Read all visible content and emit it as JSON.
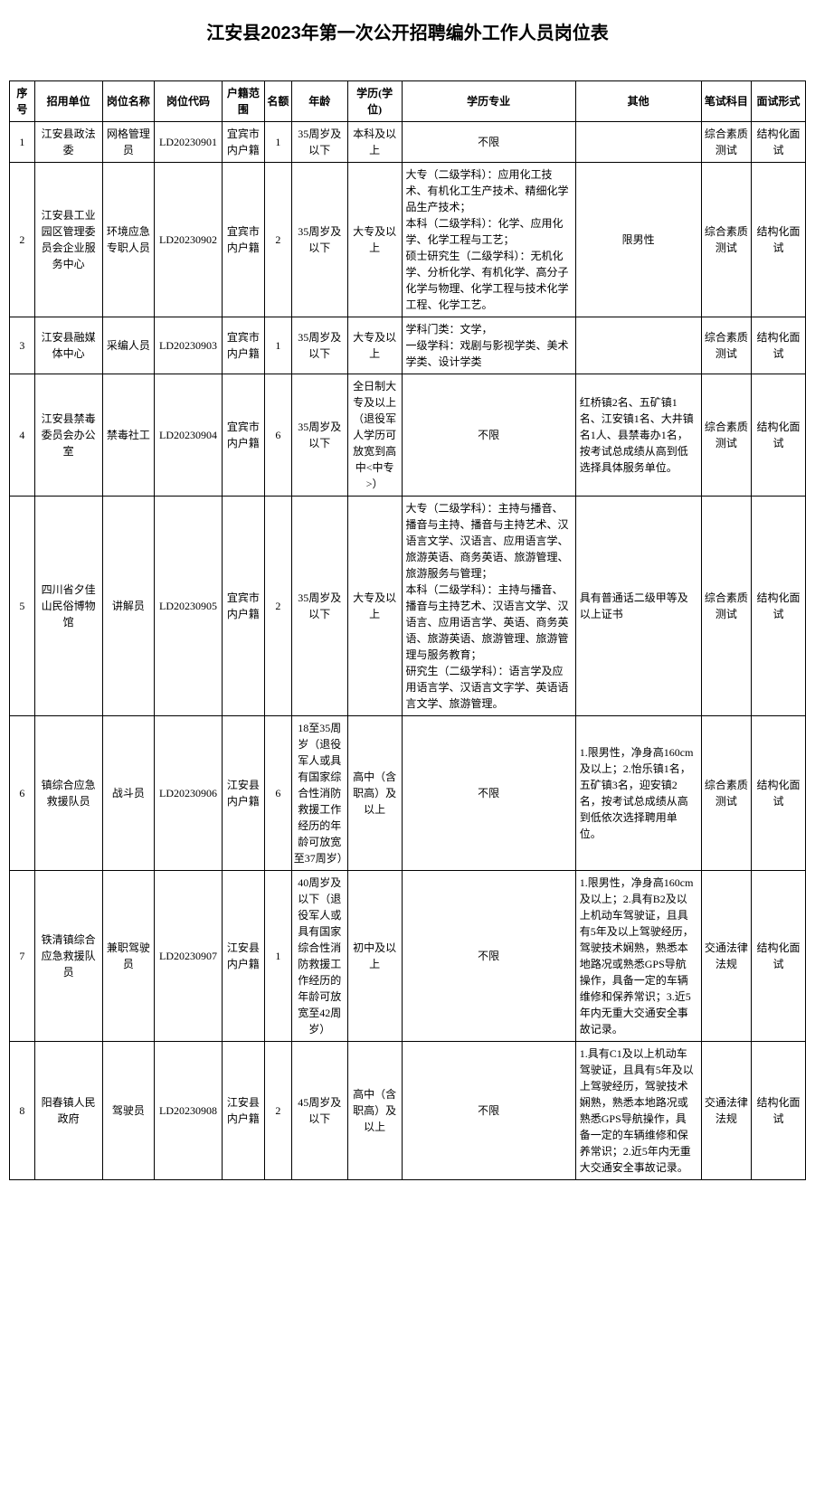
{
  "title": "江安县2023年第一次公开招聘编外工作人员岗位表",
  "headers": {
    "seq": "序号",
    "unit": "招用单位",
    "post": "岗位名称",
    "code": "岗位代码",
    "huji": "户籍范围",
    "quota": "名额",
    "age": "年龄",
    "edu": "学历(学位)",
    "major": "学历专业",
    "other": "其他",
    "exam": "笔试科目",
    "interview": "面试形式"
  },
  "rows": [
    {
      "seq": "1",
      "unit": "江安县政法委",
      "post": "网格管理员",
      "code": "LD20230901",
      "huji": "宜宾市内户籍",
      "quota": "1",
      "age": "35周岁及以下",
      "edu": "本科及以上",
      "major": "不限",
      "other": "",
      "exam": "综合素质测试",
      "interview": "结构化面试"
    },
    {
      "seq": "2",
      "unit": "江安县工业园区管理委员会企业服务中心",
      "post": "环境应急专职人员",
      "code": "LD20230902",
      "huji": "宜宾市内户籍",
      "quota": "2",
      "age": "35周岁及以下",
      "edu": "大专及以上",
      "major": "大专（二级学科）：应用化工技术、有机化工生产技术、精细化学品生产技术；\n本科（二级学科）：化学、应用化学、化学工程与工艺；\n硕士研究生（二级学科）：无机化学、分析化学、有机化学、高分子化学与物理、化学工程与技术化学工程、化学工艺。",
      "other": "限男性",
      "exam": "综合素质测试",
      "interview": "结构化面试"
    },
    {
      "seq": "3",
      "unit": "江安县融媒体中心",
      "post": "采编人员",
      "code": "LD20230903",
      "huji": "宜宾市内户籍",
      "quota": "1",
      "age": "35周岁及以下",
      "edu": "大专及以上",
      "major": "学科门类：文学，\n一级学科：戏剧与影视学类、美术学类、设计学类",
      "other": "",
      "exam": "综合素质测试",
      "interview": "结构化面试"
    },
    {
      "seq": "4",
      "unit": "江安县禁毒委员会办公室",
      "post": "禁毒社工",
      "code": "LD20230904",
      "huji": "宜宾市内户籍",
      "quota": "6",
      "age": "35周岁及以下",
      "edu": "全日制大专及以上（退役军人学历可放宽到高中<中专>）",
      "major": "不限",
      "other": "红桥镇2名、五矿镇1名、江安镇1名、大井镇名1人、县禁毒办1名，按考试总成绩从高到低选择具体服务单位。",
      "exam": "综合素质测试",
      "interview": "结构化面试"
    },
    {
      "seq": "5",
      "unit": "四川省夕佳山民俗博物馆",
      "post": "讲解员",
      "code": "LD20230905",
      "huji": "宜宾市内户籍",
      "quota": "2",
      "age": "35周岁及以下",
      "edu": "大专及以上",
      "major": "大专（二级学科）：主持与播音、播音与主持、播音与主持艺术、汉语言文学、汉语言、应用语言学、旅游英语、商务英语、旅游管理、旅游服务与管理；\n本科（二级学科）：主持与播音、播音与主持艺术、汉语言文学、汉语言、应用语言学、英语、商务英语、旅游英语、旅游管理、旅游管理与服务教育；\n研究生（二级学科）：语言学及应用语言学、汉语言文字学、英语语言文学、旅游管理。",
      "other": "具有普通话二级甲等及以上证书",
      "exam": "综合素质测试",
      "interview": "结构化面试"
    },
    {
      "seq": "6",
      "unit": "镇综合应急救援队员",
      "post": "战斗员",
      "code": "LD20230906",
      "huji": "江安县内户籍",
      "quota": "6",
      "age": "18至35周岁（退役军人或具有国家综合性消防救援工作经历的年龄可放宽至37周岁）",
      "edu": "高中（含职高）及以上",
      "major": "不限",
      "other": "1.限男性，净身高160cm及以上；2.怡乐镇1名，五矿镇3名，迎安镇2名，按考试总成绩从高到低依次选择聘用单位。",
      "exam": "综合素质测试",
      "interview": "结构化面试"
    },
    {
      "seq": "7",
      "unit": "铁清镇综合应急救援队员",
      "post": "兼职驾驶员",
      "code": "LD20230907",
      "huji": "江安县内户籍",
      "quota": "1",
      "age": "40周岁及以下（退役军人或具有国家综合性消防救援工作经历的年龄可放宽至42周岁）",
      "edu": "初中及以上",
      "major": "不限",
      "other": "1.限男性，净身高160cm及以上；2.具有B2及以上机动车驾驶证，且具有5年及以上驾驶经历，驾驶技术娴熟，熟悉本地路况或熟悉GPS导航操作，具备一定的车辆维修和保养常识；3.近5年内无重大交通安全事故记录。",
      "exam": "交通法律法规",
      "interview": "结构化面试"
    },
    {
      "seq": "8",
      "unit": "阳春镇人民政府",
      "post": "驾驶员",
      "code": "LD20230908",
      "huji": "江安县内户籍",
      "quota": "2",
      "age": "45周岁及以下",
      "edu": "高中（含职高）及以上",
      "major": "不限",
      "other": "1.具有C1及以上机动车驾驶证，且具有5年及以上驾驶经历，驾驶技术娴熟，熟悉本地路况或熟悉GPS导航操作，具备一定的车辆维修和保养常识；2.近5年内无重大交通安全事故记录。",
      "exam": "交通法律法规",
      "interview": "结构化面试"
    }
  ]
}
